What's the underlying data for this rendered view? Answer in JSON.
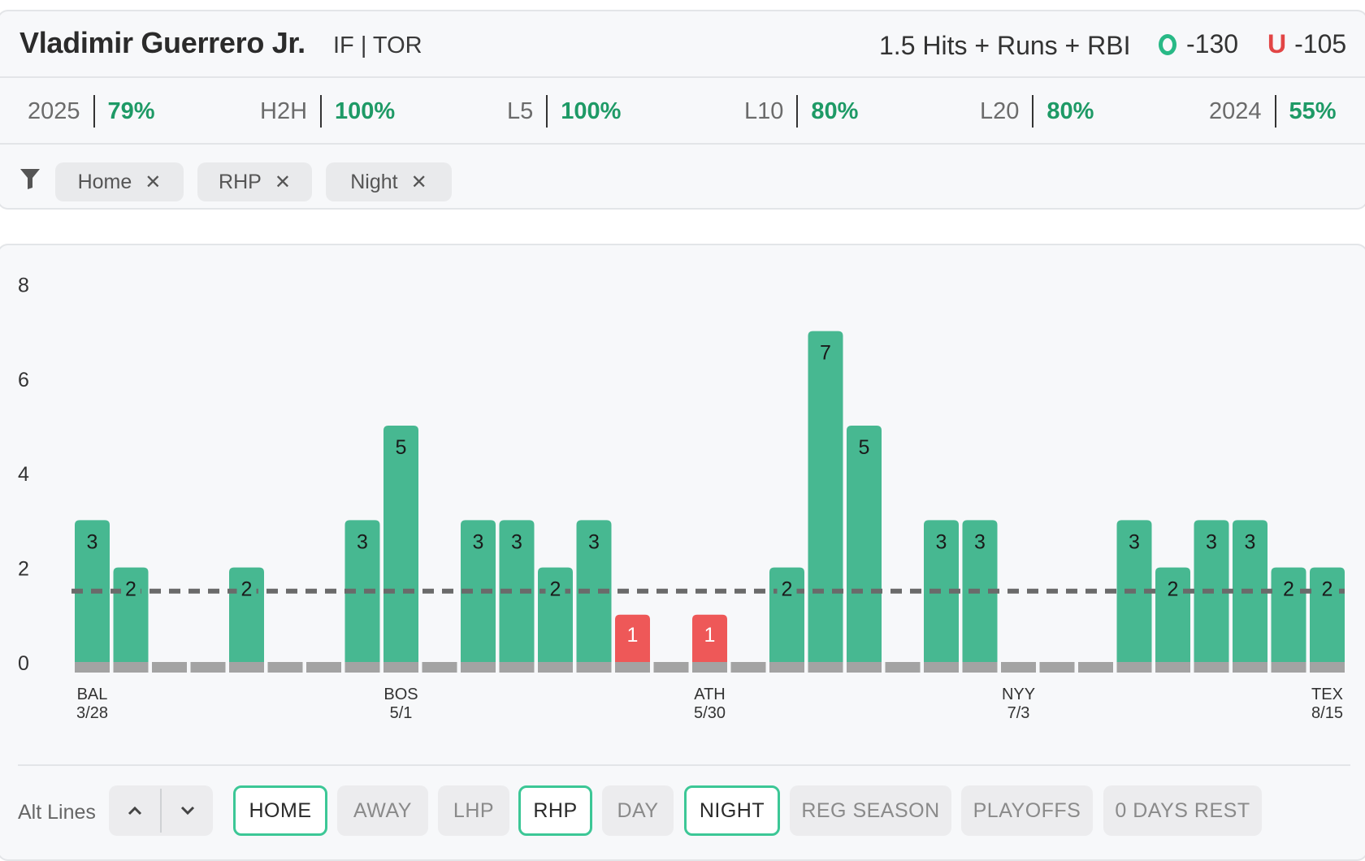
{
  "header": {
    "player_name": "Vladimir Guerrero Jr.",
    "player_meta": "IF | TOR",
    "prop_line": "1.5 Hits + Runs + RBI",
    "over_odds": "-130",
    "under_label": "U",
    "under_odds": "-105"
  },
  "stats": [
    {
      "label": "2025",
      "value": "79%"
    },
    {
      "label": "H2H",
      "value": "100%"
    },
    {
      "label": "L5",
      "value": "100%"
    },
    {
      "label": "L10",
      "value": "80%"
    },
    {
      "label": "L20",
      "value": "80%"
    },
    {
      "label": "2024",
      "value": "55%"
    }
  ],
  "filters": [
    {
      "label": "Home"
    },
    {
      "label": "RHP"
    },
    {
      "label": "Night"
    }
  ],
  "chart_data": {
    "type": "bar",
    "line": 1.5,
    "ylim": [
      0,
      8
    ],
    "yticks": [
      0,
      2,
      4,
      6,
      8
    ],
    "values": [
      3,
      2,
      0,
      0,
      2,
      0,
      0,
      3,
      5,
      0,
      3,
      3,
      2,
      3,
      1,
      0,
      1,
      0,
      2,
      7,
      5,
      0,
      3,
      3,
      0,
      0,
      0,
      3,
      2,
      3,
      3,
      2,
      2
    ],
    "x_labels": [
      {
        "index": 0,
        "team": "BAL",
        "date": "3/28"
      },
      {
        "index": 8,
        "team": "BOS",
        "date": "5/1"
      },
      {
        "index": 16,
        "team": "ATH",
        "date": "5/30"
      },
      {
        "index": 24,
        "team": "NYY",
        "date": "7/3"
      },
      {
        "index": 32,
        "team": "TEX",
        "date": "8/15"
      }
    ],
    "colors": {
      "over": "#47b891",
      "under": "#ee5858",
      "base": "#a3a3a3",
      "line": "#6a6a6a"
    }
  },
  "controls": {
    "alt_lines_label": "Alt Lines",
    "up_icon": "chevron-up-icon",
    "down_icon": "chevron-down-icon",
    "buttons": [
      {
        "label": "HOME",
        "active": true
      },
      {
        "label": "AWAY",
        "active": false
      },
      {
        "label": "LHP",
        "active": false
      },
      {
        "label": "RHP",
        "active": true
      },
      {
        "label": "DAY",
        "active": false
      },
      {
        "label": "NIGHT",
        "active": true
      },
      {
        "label": "REG SEASON",
        "active": false
      },
      {
        "label": "PLAYOFFS",
        "active": false
      },
      {
        "label": "0 DAYS REST",
        "active": false
      }
    ]
  }
}
